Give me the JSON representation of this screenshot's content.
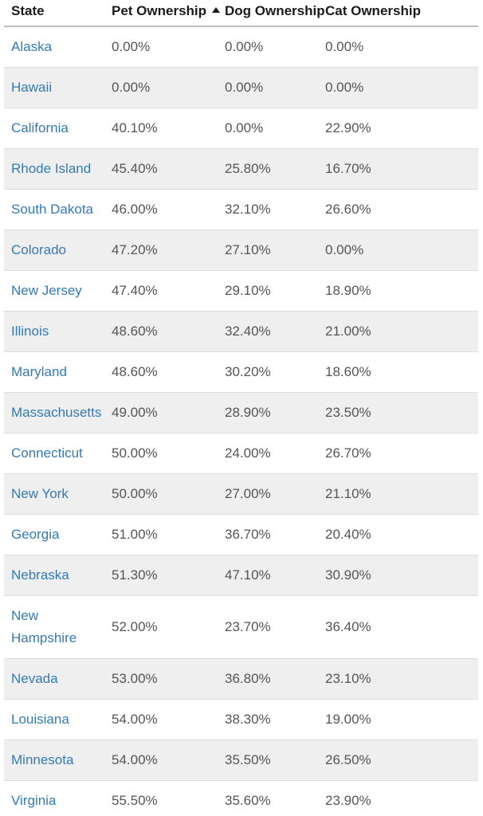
{
  "colors": {
    "link_blue": "#337ab7",
    "stripe_gray": "#efefef",
    "row_border": "#dddddd",
    "header_border": "#bdbdbd",
    "value_text": "#555555",
    "header_text": "#1a1a1a"
  },
  "table": {
    "columns": [
      {
        "label": "State",
        "sorted": "none"
      },
      {
        "label": "Pet Ownership",
        "sorted": "ascending",
        "sort_icon": "triangle-up-icon"
      },
      {
        "label": "Dog Ownership",
        "sorted": "none"
      },
      {
        "label": "Cat Ownership",
        "sorted": "none"
      }
    ],
    "rows": [
      {
        "state": "Alaska",
        "pet": "0.00%",
        "dog": "0.00%",
        "cat": "0.00%"
      },
      {
        "state": "Hawaii",
        "pet": "0.00%",
        "dog": "0.00%",
        "cat": "0.00%"
      },
      {
        "state": "California",
        "pet": "40.10%",
        "dog": "0.00%",
        "cat": "22.90%"
      },
      {
        "state": "Rhode Island",
        "pet": "45.40%",
        "dog": "25.80%",
        "cat": "16.70%"
      },
      {
        "state": "South Dakota",
        "pet": "46.00%",
        "dog": "32.10%",
        "cat": "26.60%"
      },
      {
        "state": "Colorado",
        "pet": "47.20%",
        "dog": "27.10%",
        "cat": "0.00%"
      },
      {
        "state": "New Jersey",
        "pet": "47.40%",
        "dog": "29.10%",
        "cat": "18.90%"
      },
      {
        "state": "Illinois",
        "pet": "48.60%",
        "dog": "32.40%",
        "cat": "21.00%"
      },
      {
        "state": "Maryland",
        "pet": "48.60%",
        "dog": "30.20%",
        "cat": "18.60%"
      },
      {
        "state": "Massachusetts",
        "pet": "49.00%",
        "dog": "28.90%",
        "cat": "23.50%"
      },
      {
        "state": "Connecticut",
        "pet": "50.00%",
        "dog": "24.00%",
        "cat": "26.70%"
      },
      {
        "state": "New York",
        "pet": "50.00%",
        "dog": "27.00%",
        "cat": "21.10%"
      },
      {
        "state": "Georgia",
        "pet": "51.00%",
        "dog": "36.70%",
        "cat": "20.40%"
      },
      {
        "state": "Nebraska",
        "pet": "51.30%",
        "dog": "47.10%",
        "cat": "30.90%"
      },
      {
        "state": "New Hampshire",
        "pet": "52.00%",
        "dog": "23.70%",
        "cat": "36.40%"
      },
      {
        "state": "Nevada",
        "pet": "53.00%",
        "dog": "36.80%",
        "cat": "23.10%"
      },
      {
        "state": "Louisiana",
        "pet": "54.00%",
        "dog": "38.30%",
        "cat": "19.00%"
      },
      {
        "state": "Minnesota",
        "pet": "54.00%",
        "dog": "35.50%",
        "cat": "26.50%"
      },
      {
        "state": "Virginia",
        "pet": "55.50%",
        "dog": "35.60%",
        "cat": "23.90%"
      }
    ]
  }
}
